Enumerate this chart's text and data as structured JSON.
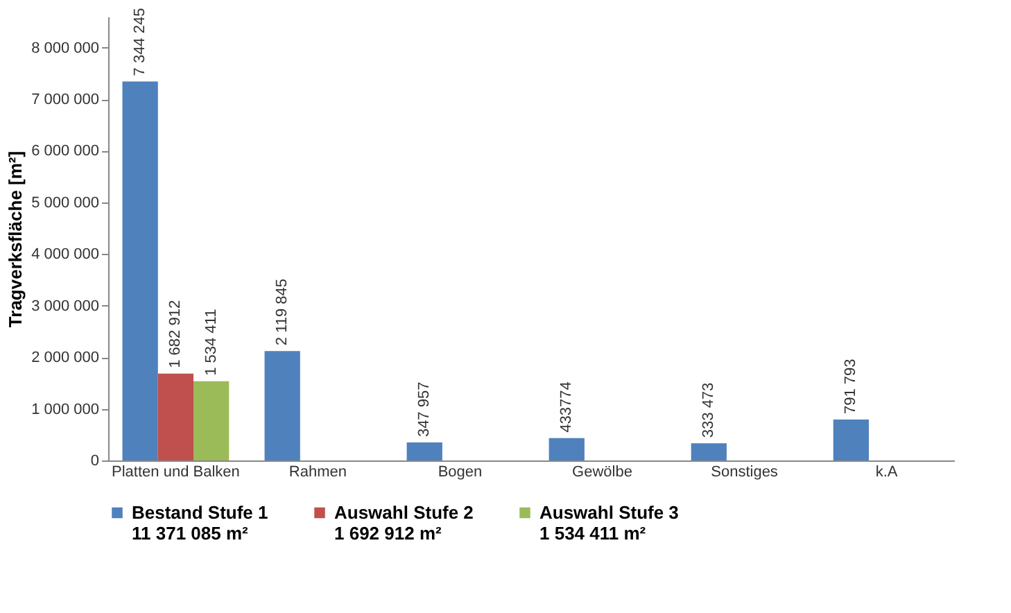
{
  "chart_data": {
    "type": "bar",
    "ylabel": "Tragverksfläche [m²]",
    "categories": [
      "Platten und Balken",
      "Rahmen",
      "Bogen",
      "Gewölbe",
      "Sonstiges",
      "k.A"
    ],
    "series": [
      {
        "name": "Bestand Stufe 1\n11 371 085 m²",
        "color": "#4f81bd",
        "values": [
          7344245,
          2119845,
          347957,
          433774,
          333473,
          791793
        ],
        "value_labels": [
          "7 344 245",
          "2 119 845",
          "347 957",
          "433774",
          "333 473",
          "791 793"
        ]
      },
      {
        "name": "Auswahl Stufe 2\n1 692 912 m²",
        "color": "#c0504d",
        "values": [
          1682912,
          null,
          null,
          null,
          null,
          null
        ],
        "value_labels": [
          "1 682 912",
          null,
          null,
          null,
          null,
          null
        ]
      },
      {
        "name": "Auswahl Stufe 3\n1 534 411 m²",
        "color": "#9bbb59",
        "values": [
          1534411,
          null,
          null,
          null,
          null,
          null
        ],
        "value_labels": [
          "1 534 411",
          null,
          null,
          null,
          null,
          null
        ]
      }
    ],
    "ylim": [
      0,
      8600000
    ],
    "yticks": [
      {
        "value": 0,
        "label": "0"
      },
      {
        "value": 1000000,
        "label": "1 000 000"
      },
      {
        "value": 2000000,
        "label": "2 000 000"
      },
      {
        "value": 3000000,
        "label": "3 000 000"
      },
      {
        "value": 4000000,
        "label": "4 000 000"
      },
      {
        "value": 5000000,
        "label": "5 000 000"
      },
      {
        "value": 6000000,
        "label": "6 000 000"
      },
      {
        "value": 7000000,
        "label": "7 000 000"
      },
      {
        "value": 8000000,
        "label": "8 000 000"
      }
    ],
    "grid": false,
    "legend": "bottom"
  }
}
